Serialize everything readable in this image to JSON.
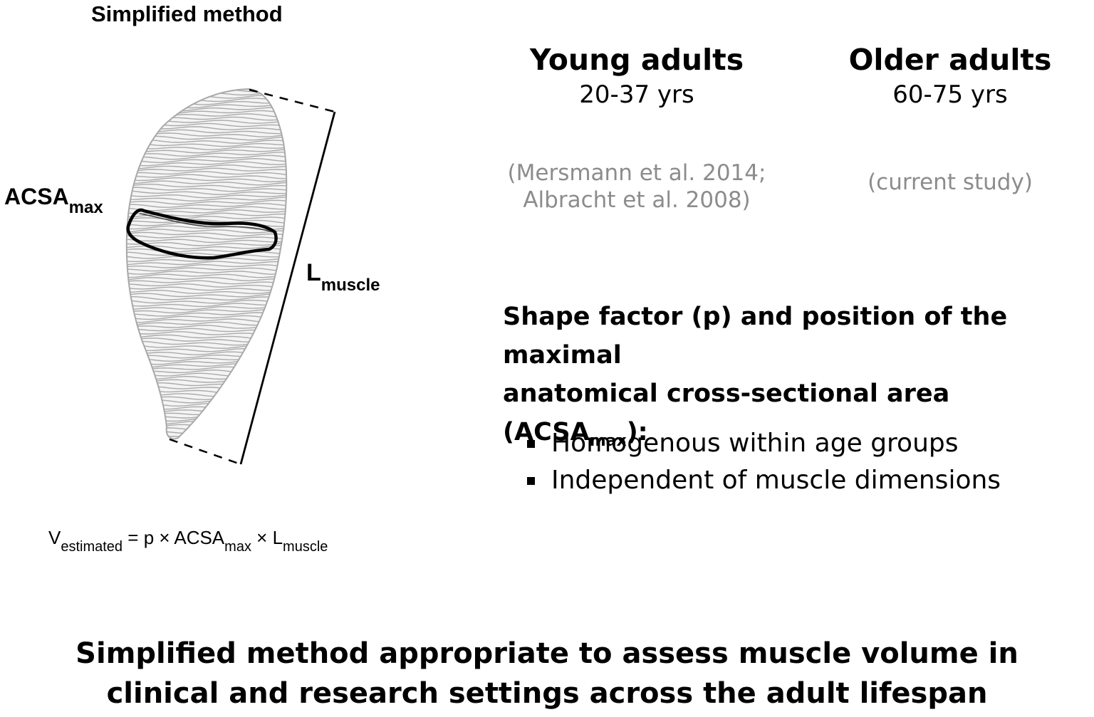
{
  "left_panel": {
    "title": "Simplified method",
    "acsa_label_main": "ACSA",
    "acsa_label_sub": "max",
    "length_label_main": "L",
    "length_label_sub": "muscle",
    "formula": {
      "v": "V",
      "v_sub": "estimated",
      "eq_p": " = p × ACSA",
      "acsa_sub": "max",
      "times_l": " × L",
      "l_sub": "muscle"
    },
    "colors": {
      "muscle_contours": "#aaaaaa",
      "acsa_outline": "#000000"
    }
  },
  "young_adults": {
    "title": "Young adults",
    "age": "20-37 yrs",
    "ref_line1": "(Mersmann et al. 2014;",
    "ref_line2": "Albracht et al. 2008)"
  },
  "older_adults": {
    "title": "Older adults",
    "age": "60-75 yrs",
    "ref": "(current study)"
  },
  "shape_heading": {
    "line1": "Shape factor (p) and position of the maximal",
    "line2_start": "anatomical cross-sectional area (ACSA",
    "line2_sub": "max",
    "line2_end": "):"
  },
  "bullets": [
    "Homogenous within age groups",
    "Independent of muscle dimensions"
  ],
  "conclusion": {
    "line1": "Simplified method appropriate to assess muscle volume in",
    "line2": "clinical and research settings across the adult lifespan"
  }
}
